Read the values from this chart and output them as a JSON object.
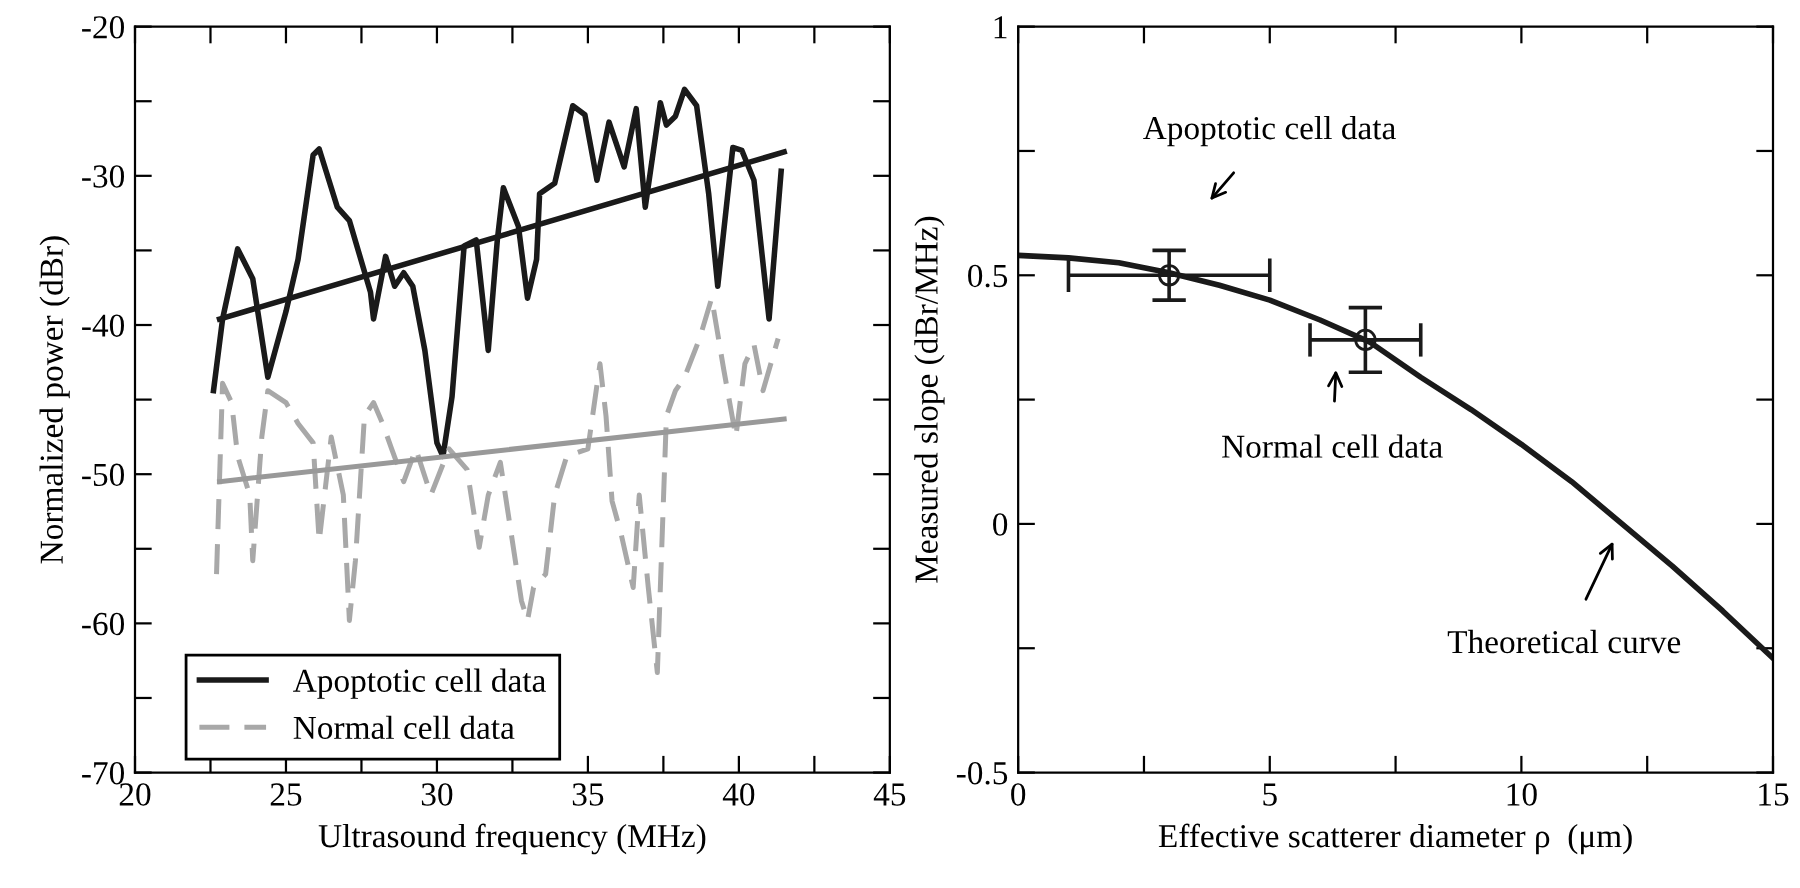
{
  "chart_data": [
    {
      "type": "line",
      "xlabel": "Ultrasound frequency (MHz)",
      "ylabel": "Normalized power (dBr)",
      "xlim": [
        20,
        45
      ],
      "ylim": [
        -70,
        -20
      ],
      "xticks": [
        20,
        {
          "value": 22.5,
          "label": null
        },
        25,
        {
          "value": 27.5,
          "label": null
        },
        30,
        {
          "value": 32.5,
          "label": null
        },
        35,
        {
          "value": 37.5,
          "label": null
        },
        40,
        {
          "value": 42.5,
          "label": null
        },
        45
      ],
      "yticks": [
        -70,
        {
          "value": -65,
          "label": null
        },
        -60,
        {
          "value": -55,
          "label": null
        },
        -50,
        {
          "value": -45,
          "label": null
        },
        -40,
        {
          "value": -35,
          "label": null
        },
        -30,
        {
          "value": -25,
          "label": null
        },
        -20
      ],
      "legend": "bottom left",
      "grid": false,
      "series": [
        {
          "name": "Apoptotic cell data",
          "color": "#1a1a1a",
          "line_style": "solid",
          "x": [
            22.6,
            22.9,
            23.4,
            23.9,
            24.4,
            25.0,
            25.4,
            25.9,
            26.1,
            26.7,
            27.1,
            27.8,
            27.9,
            28.3,
            28.6,
            28.9,
            29.2,
            29.6,
            30.0,
            30.2,
            30.5,
            30.9,
            31.3,
            31.7,
            32.0,
            32.2,
            32.7,
            33.0,
            33.3,
            33.4,
            33.9,
            34.2,
            34.5,
            34.9,
            35.3,
            35.7,
            36.2,
            36.6,
            36.9,
            37.4,
            37.6,
            37.9,
            38.2,
            38.6,
            39.0,
            39.3,
            39.8,
            40.1,
            40.5,
            41.0,
            41.4
          ],
          "values": [
            -44.4,
            -39.6,
            -34.9,
            -36.9,
            -43.5,
            -39.1,
            -35.6,
            -28.6,
            -28.2,
            -32.1,
            -33.0,
            -37.8,
            -39.6,
            -35.4,
            -37.4,
            -36.5,
            -37.4,
            -41.7,
            -47.9,
            -48.8,
            -44.8,
            -34.7,
            -34.3,
            -41.7,
            -34.3,
            -30.8,
            -33.4,
            -38.2,
            -35.6,
            -31.2,
            -30.5,
            -27.9,
            -25.3,
            -25.9,
            -30.3,
            -26.4,
            -29.4,
            -25.5,
            -32.1,
            -25.1,
            -26.6,
            -26.0,
            -24.2,
            -25.3,
            -31.2,
            -37.4,
            -28.1,
            -28.3,
            -30.3,
            -39.6,
            -29.7
          ]
        },
        {
          "color": "#1a1a1a",
          "line_style": "solid",
          "x": [
            22.8,
            41.5
          ],
          "values": [
            -39.6,
            -28.4
          ]
        },
        {
          "name": "Normal cell data",
          "color": "#a8a8a8",
          "line_style": "dashed",
          "x": [
            22.7,
            22.9,
            23.2,
            23.4,
            23.8,
            23.9,
            24.2,
            24.4,
            25.0,
            25.4,
            25.9,
            26.1,
            26.5,
            26.9,
            27.1,
            27.3,
            27.6,
            27.9,
            28.2,
            28.5,
            28.9,
            29.3,
            29.8,
            30.4,
            31.0,
            31.4,
            31.7,
            32.1,
            32.8,
            33.0,
            33.2,
            33.6,
            33.9,
            34.3,
            35.0,
            35.4,
            35.6,
            35.8,
            36.1,
            36.5,
            36.7,
            37.0,
            37.3,
            37.6,
            37.9,
            38.2,
            38.7,
            39.1,
            39.5,
            39.9,
            40.2,
            40.5,
            40.8,
            41.3
          ],
          "values": [
            -56.7,
            -43.9,
            -45.2,
            -48.8,
            -51.4,
            -55.8,
            -47.5,
            -44.4,
            -45.2,
            -46.6,
            -47.9,
            -54.5,
            -47.5,
            -51.4,
            -59.8,
            -55.8,
            -46.1,
            -45.2,
            -46.6,
            -48.3,
            -50.5,
            -48.3,
            -51.4,
            -48.3,
            -49.7,
            -54.9,
            -51.4,
            -49.2,
            -58.5,
            -59.8,
            -57.6,
            -56.7,
            -51.4,
            -48.8,
            -48.3,
            -42.6,
            -46.1,
            -51.8,
            -54.0,
            -57.6,
            -51.4,
            -57.6,
            -63.3,
            -46.1,
            -44.4,
            -43.5,
            -40.9,
            -38.2,
            -43.0,
            -47.5,
            -42.6,
            -41.3,
            -44.4,
            -40.9
          ]
        },
        {
          "color": "#999999",
          "line_style": "solid",
          "x": [
            22.8,
            41.5
          ],
          "values": [
            -50.5,
            -46.3
          ]
        }
      ]
    },
    {
      "type": "line",
      "xlabel": "Effective scatterer diameter ρ  (μm)",
      "ylabel": "Measured slope (dBr/MHz)",
      "xlim": [
        0,
        15
      ],
      "ylim": [
        -0.5,
        1
      ],
      "xticks": [
        0,
        {
          "value": 2.5,
          "label": null
        },
        5,
        {
          "value": 7.5,
          "label": null
        },
        10,
        {
          "value": 12.5,
          "label": null
        },
        15
      ],
      "yticks": [
        -0.5,
        {
          "value": -0.25,
          "label": null
        },
        0,
        {
          "value": 0.25,
          "label": null
        },
        0.5,
        {
          "value": 0.75,
          "label": null
        },
        1
      ],
      "grid": false,
      "series": [
        {
          "color": "#1a1a1a",
          "line_style": "solid",
          "x": [
            0,
            1,
            2,
            3,
            4,
            5,
            6,
            7,
            8,
            9,
            10,
            11,
            12,
            13,
            14,
            15
          ],
          "values": [
            0.54,
            0.535,
            0.525,
            0.505,
            0.48,
            0.45,
            0.41,
            0.365,
            0.295,
            0.23,
            0.16,
            0.085,
            0.0,
            -0.085,
            -0.175,
            -0.27
          ]
        },
        {
          "type": "scatter",
          "color": "#1a1a1a",
          "marker": "circle",
          "x": [
            3.0
          ],
          "values": [
            0.5
          ],
          "errors": [
            0.05
          ],
          "xerrors": [
            2.0
          ]
        },
        {
          "type": "scatter",
          "color": "#1a1a1a",
          "marker": "circle",
          "x": [
            6.9
          ],
          "values": [
            0.37
          ],
          "errors": [
            0.065
          ],
          "xerrors": [
            1.1
          ]
        }
      ],
      "annotations": [
        "Apoptotic cell data",
        "Normal cell data",
        {
          "text": "Theoretical curve",
          "x": 11.9,
          "y": -0.02
        }
      ]
    }
  ]
}
